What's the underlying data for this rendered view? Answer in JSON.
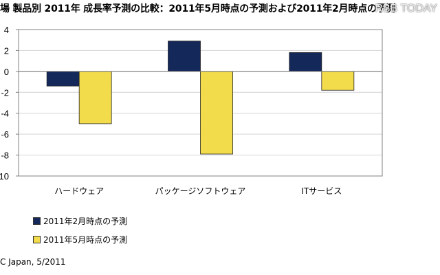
{
  "colors": {
    "series_feb": "#14285a",
    "series_may": "#f2dc4c",
    "axis": "#808080",
    "grid": "#d4d4d4"
  },
  "chart_data": {
    "type": "bar",
    "title": "場 製品別 2011年 成長率予測の比較：2011年5月時点の予測および2011年2月時点の予測",
    "categories": [
      "ハードウェア",
      "パッケージソフトウェア",
      "ITサービス"
    ],
    "series": [
      {
        "name": "2011年2月時点の予測",
        "values": [
          -1.4,
          2.9,
          1.8
        ]
      },
      {
        "name": "2011年5月時点の予測",
        "values": [
          -5.0,
          -7.9,
          -1.8
        ]
      }
    ],
    "yticks": [
      "4",
      "2",
      "0",
      "-2",
      "-4",
      "-6",
      "-8",
      "-10"
    ],
    "ylim": [
      -10,
      4
    ],
    "grid": true,
    "legend_position": "bottom-left",
    "source": "C Japan, 5/2011"
  },
  "watermark": "RBB TODAY"
}
